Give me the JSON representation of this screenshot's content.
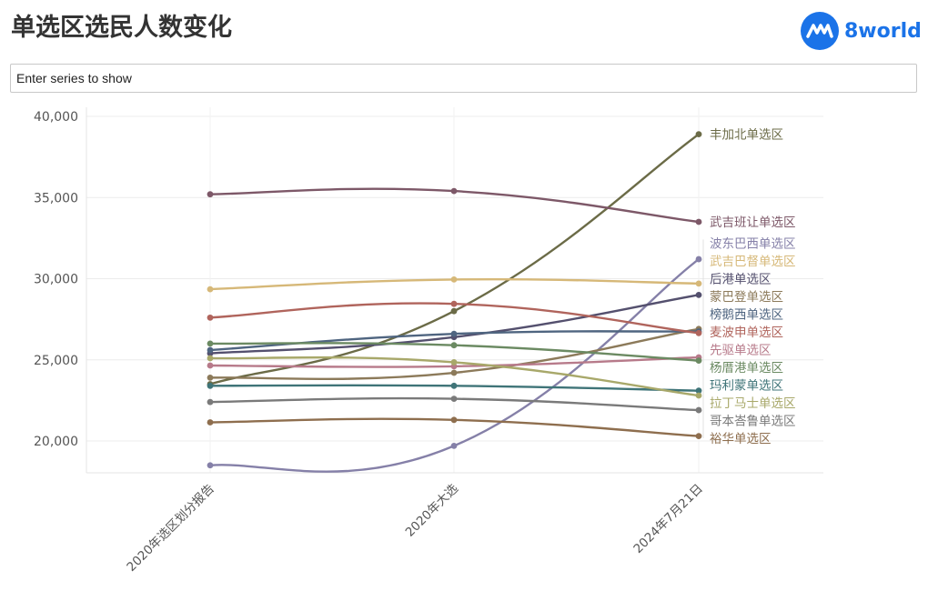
{
  "header": {
    "title": "单选区选民人数变化",
    "logo_text": "8world",
    "logo_color": "#1b73e8",
    "logo_icon": "8world-logo-icon"
  },
  "search": {
    "placeholder": "Enter series to show",
    "value": ""
  },
  "chart_data": {
    "type": "line",
    "title": "单选区选民人数变化",
    "xlabel": "",
    "ylabel": "",
    "categories": [
      "2020年选区划分报告",
      "2020年大选",
      "2024年7月21日"
    ],
    "ylim": [
      18000,
      40000
    ],
    "yticks": [
      20000,
      25000,
      30000,
      35000,
      40000
    ],
    "ytick_labels": [
      "20,000",
      "25,000",
      "30,000",
      "35,000",
      "40,000"
    ],
    "grid": true,
    "legend": "direct labels at line ends",
    "series": [
      {
        "name": "丰加北单选区",
        "values": [
          23500,
          28000,
          38900
        ],
        "color": "#6b6b47"
      },
      {
        "name": "武吉班让单选区",
        "values": [
          35200,
          35400,
          33500
        ],
        "color": "#7d5868"
      },
      {
        "name": "波东巴西单选区",
        "values": [
          18500,
          19700,
          31200
        ],
        "color": "#8580a8"
      },
      {
        "name": "武吉巴督单选区",
        "values": [
          29350,
          29950,
          29700
        ],
        "color": "#d6b878"
      },
      {
        "name": "后港单选区",
        "values": [
          25400,
          26400,
          29000
        ],
        "color": "#54506e"
      },
      {
        "name": "蒙巴登单选区",
        "values": [
          23900,
          24200,
          26900
        ],
        "color": "#8c7a5a"
      },
      {
        "name": "榜鹅西单选区",
        "values": [
          25600,
          26600,
          26750
        ],
        "color": "#4f6580"
      },
      {
        "name": "麦波申单选区",
        "values": [
          27600,
          28450,
          26650
        ],
        "color": "#b0645c"
      },
      {
        "name": "先驱单选区",
        "values": [
          24650,
          24600,
          25150
        ],
        "color": "#b77a8a"
      },
      {
        "name": "杨厝港单选区",
        "values": [
          26000,
          25900,
          24950
        ],
        "color": "#6b8a62"
      },
      {
        "name": "玛利蒙单选区",
        "values": [
          23400,
          23400,
          23100
        ],
        "color": "#3f7478"
      },
      {
        "name": "拉丁马士单选区",
        "values": [
          25100,
          24850,
          22800
        ],
        "color": "#a8a86a"
      },
      {
        "name": "哥本峇鲁单选区",
        "values": [
          22400,
          22600,
          21900
        ],
        "color": "#7a7a7a"
      },
      {
        "name": "裕华单选区",
        "values": [
          21150,
          21300,
          20300
        ],
        "color": "#8e6e4e"
      }
    ]
  }
}
